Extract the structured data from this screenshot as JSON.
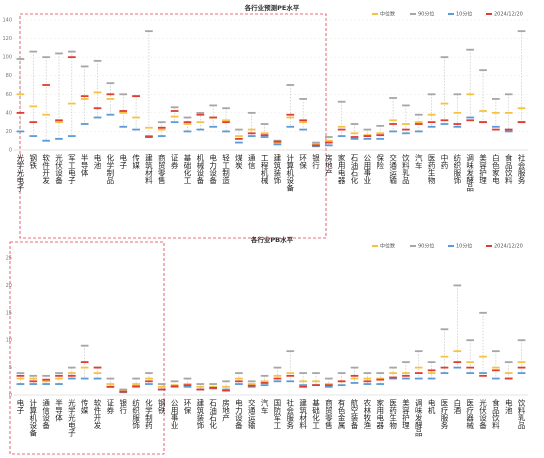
{
  "chart_data": [
    {
      "type": "range",
      "title": "各行业预测PE水平",
      "categories": [
        "光学光电子",
        "钢铁",
        "软件开发",
        "光伏设备",
        "军工电子",
        "半导体",
        "电池",
        "化学制品",
        "电子",
        "传媒",
        "建筑材料",
        "商贸零售",
        "证券",
        "基础化工",
        "机械设备",
        "电力设备",
        "轻工制造",
        "煤炭",
        "通信",
        "工程机械",
        "建筑装饰",
        "计算机设备",
        "环保",
        "银行",
        "房地产",
        "家用电器",
        "石油石化",
        "公用事业",
        "保险",
        "交通运输",
        "饮料乳品",
        "汽车",
        "医药生物",
        "中药",
        "纺织服饰",
        "调味发酵品",
        "美容护理",
        "白色家电",
        "食品饮料",
        "社会服务"
      ],
      "series": [
        {
          "name": "中位数",
          "color": "#f5c342",
          "values": [
            60,
            47,
            38,
            30,
            50,
            55,
            62,
            55,
            40,
            35,
            24,
            22,
            36,
            28,
            30,
            35,
            32,
            15,
            22,
            18,
            8,
            35,
            30,
            6,
            10,
            25,
            18,
            16,
            18,
            32,
            28,
            30,
            38,
            50,
            40,
            60,
            42,
            40,
            40,
            45
          ]
        },
        {
          "name": "90分位",
          "color": "#a6a6a6",
          "values": [
            98,
            106,
            100,
            104,
            106,
            90,
            96,
            72,
            60,
            58,
            128,
            30,
            46,
            35,
            40,
            48,
            45,
            22,
            40,
            28,
            10,
            70,
            55,
            8,
            14,
            52,
            28,
            22,
            26,
            56,
            48,
            38,
            60,
            100,
            60,
            108,
            86,
            55,
            60,
            128
          ]
        },
        {
          "name": "10分位",
          "color": "#5b9bd5",
          "values": [
            20,
            15,
            10,
            12,
            15,
            28,
            35,
            38,
            25,
            22,
            15,
            15,
            30,
            20,
            22,
            25,
            20,
            8,
            15,
            14,
            6,
            25,
            22,
            4,
            5,
            15,
            12,
            12,
            12,
            20,
            18,
            20,
            25,
            28,
            25,
            35,
            30,
            25,
            20,
            30
          ]
        },
        {
          "name": "2024/12/20",
          "color": "#e03c31",
          "values": [
            40,
            30,
            70,
            32,
            100,
            58,
            45,
            60,
            42,
            58,
            14,
            24,
            42,
            30,
            38,
            35,
            30,
            12,
            18,
            16,
            9,
            38,
            32,
            5,
            8,
            22,
            14,
            15,
            16,
            28,
            22,
            28,
            30,
            32,
            28,
            32,
            30,
            22,
            22,
            30
          ]
        }
      ],
      "ylim": [
        0,
        140
      ],
      "yticks": [
        0,
        20,
        40,
        60,
        80,
        100,
        120,
        140
      ],
      "grid": true
    },
    {
      "type": "range",
      "title": "各行业PB水平",
      "categories": [
        "电子",
        "计算机设备",
        "通信设备",
        "半导体",
        "光学光电子",
        "传媒",
        "软件开发",
        "证券",
        "银行",
        "纺织服饰",
        "化学制药",
        "钢铁",
        "公用事业",
        "环保",
        "建筑装饰",
        "石油石化",
        "房地产",
        "电力设备",
        "交通运输",
        "汽车",
        "国防军工",
        "社会服务",
        "建筑材料",
        "基础化工",
        "商贸零售",
        "有色金属",
        "航空装备",
        "农林牧渔",
        "家用电器",
        "医药生物",
        "美容护理",
        "调味发酵品",
        "电机",
        "医疗服务",
        "白酒",
        "医疗器械",
        "光伏设备",
        "食品饮料",
        "电池",
        "饮料乳品"
      ],
      "series": [
        {
          "name": "中位数",
          "color": "#f5c342",
          "values": [
            3,
            3,
            2.5,
            3,
            4,
            5,
            4,
            2,
            0.8,
            2,
            3,
            1.5,
            1.8,
            2,
            1.5,
            1.5,
            1.5,
            3,
            2,
            2.5,
            3.5,
            4,
            2.5,
            2.5,
            2,
            2.5,
            3,
            3,
            3,
            4,
            4,
            5,
            4,
            7,
            8,
            6,
            7,
            5,
            4,
            6
          ]
        },
        {
          "name": "90分位",
          "color": "#a6a6a6",
          "values": [
            4,
            3.5,
            3.5,
            4,
            5,
            9,
            5,
            3,
            1,
            3,
            4,
            2,
            2.5,
            3,
            2,
            2,
            2.5,
            4,
            2.5,
            3.5,
            5,
            8,
            4,
            4,
            3,
            4,
            5,
            4,
            4,
            5,
            6,
            8,
            6,
            12,
            20,
            10,
            15,
            8,
            6,
            10
          ]
        },
        {
          "name": "10分位",
          "color": "#5b9bd5",
          "values": [
            2,
            2,
            2,
            2,
            3,
            3,
            3,
            1.5,
            0.5,
            1.5,
            2,
            1,
            1.5,
            1.5,
            1,
            1.2,
            1,
            2,
            1.5,
            1.8,
            2.5,
            2.5,
            1.8,
            1.8,
            1.5,
            1.8,
            2.2,
            2,
            2,
            3,
            3,
            3,
            3,
            4,
            5,
            4,
            4,
            3,
            3,
            4
          ]
        },
        {
          "name": "2024/12/20",
          "color": "#e03c31",
          "values": [
            3.5,
            2.5,
            2.8,
            3.5,
            3.5,
            6,
            5,
            1.5,
            0.6,
            1.6,
            2.5,
            1,
            1.6,
            1.8,
            1,
            1.3,
            0.8,
            2.5,
            1.7,
            2.2,
            3,
            3.5,
            1.5,
            1.8,
            1.8,
            2.5,
            3.5,
            2.5,
            2.8,
            3.2,
            3.5,
            4,
            4.5,
            5,
            6,
            5,
            3.5,
            4.5,
            3,
            5
          ]
        }
      ],
      "ylim": [
        0,
        25
      ],
      "yticks": [
        0,
        5,
        10,
        15,
        20,
        25
      ],
      "grid": false
    }
  ]
}
